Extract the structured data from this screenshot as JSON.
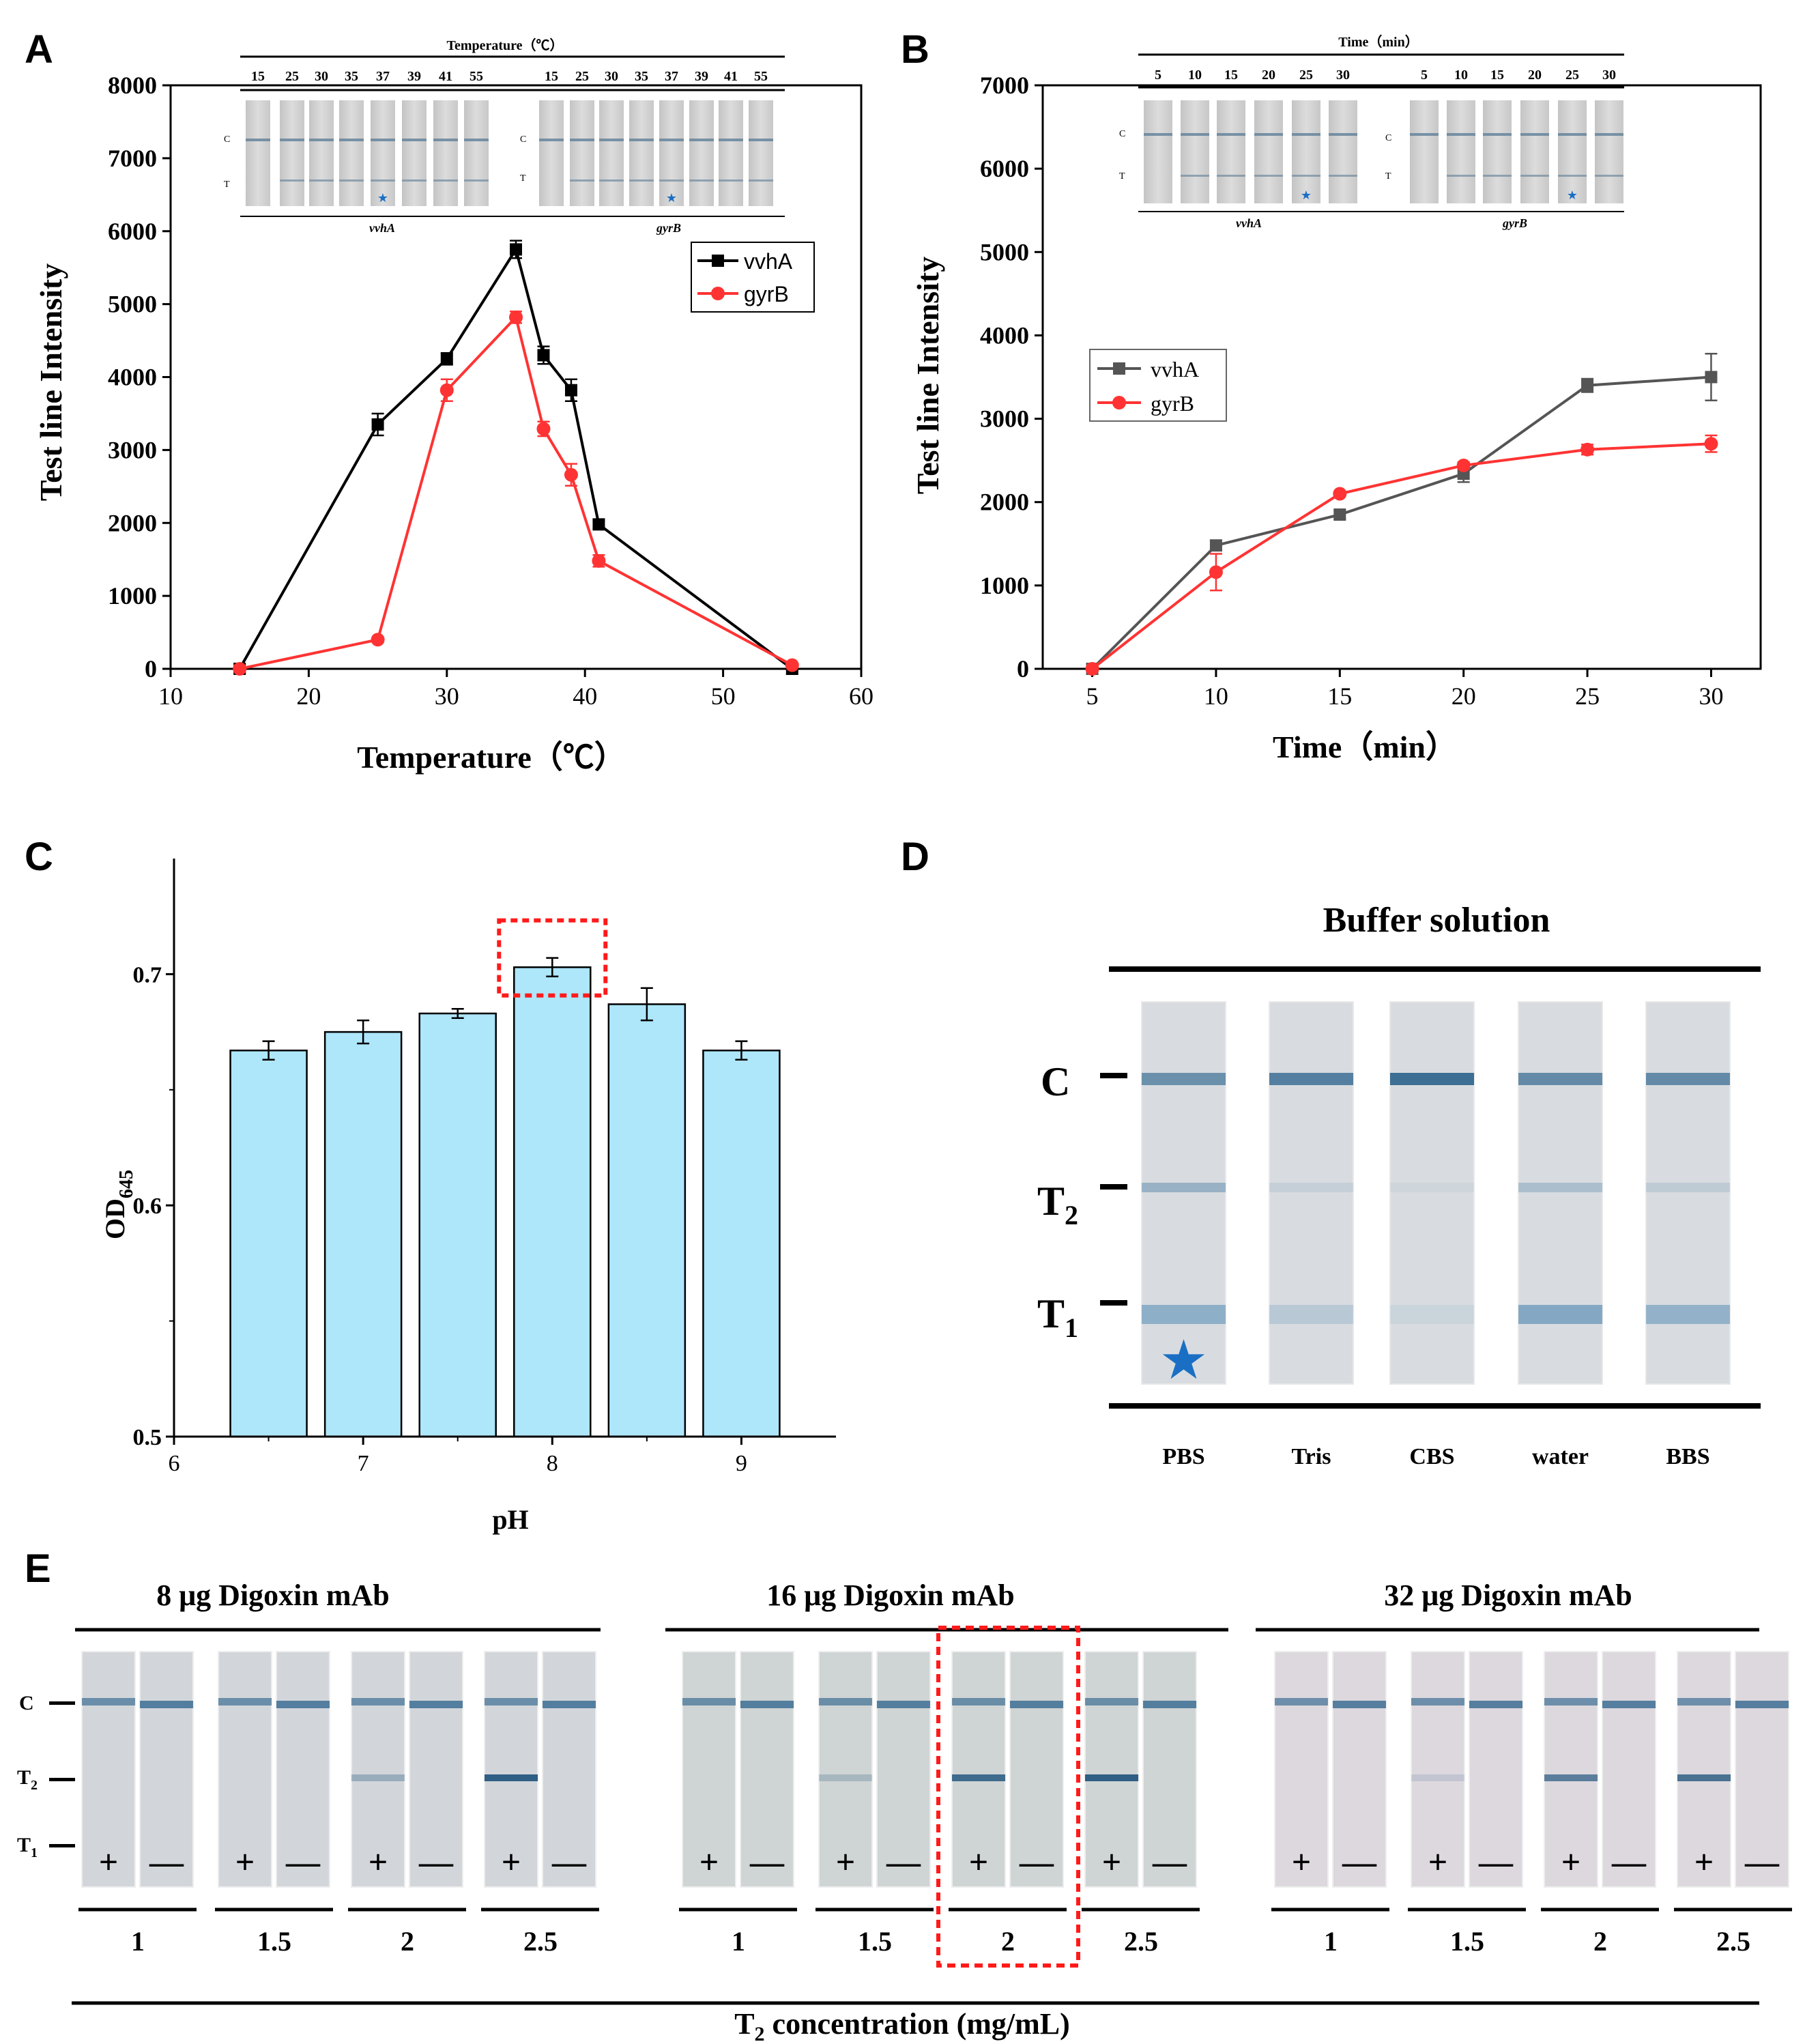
{
  "panels": {
    "A": {
      "letter": "A",
      "inset": {
        "title": "Temperature（℃）",
        "temps": [
          "15",
          "25",
          "30",
          "35",
          "37",
          "39",
          "41",
          "55"
        ],
        "gene_left": "vvhA",
        "gene_right": "gyrB",
        "c_label": "C",
        "t_label": "T"
      }
    },
    "B": {
      "letter": "B",
      "inset": {
        "title": "Time（min）",
        "times": [
          "5",
          "10",
          "15",
          "20",
          "25",
          "30"
        ],
        "gene_left": "vvhA",
        "gene_right": "gyrB",
        "c_label": "C",
        "t_label": "T"
      }
    },
    "C": {
      "letter": "C"
    },
    "D": {
      "letter": "D",
      "title": "Buffer  solution",
      "buffers": [
        "PBS",
        "Tris",
        "CBS",
        "water",
        "BBS"
      ],
      "c_label": "C",
      "t2_label": "T",
      "t2_sub": "2",
      "t1_label": "T",
      "t1_sub": "1"
    },
    "E": {
      "letter": "E",
      "groups": [
        "8 μg Digoxin mAb",
        "16 μg Digoxin mAb",
        "32 μg Digoxin mAb"
      ],
      "concentrations": [
        "1",
        "1.5",
        "2",
        "2.5"
      ],
      "plus": "+",
      "minus": "—",
      "c_label": "C",
      "t2_label": "T",
      "t2_sub": "2",
      "t1_label": "T",
      "t1_sub": "1",
      "xlabel_main": "T",
      "xlabel_sub": "2",
      "xlabel_rest": " concentration (mg/mL)"
    }
  },
  "colors": {
    "black": "#000000",
    "red": "#ff3333",
    "gray": "#555555",
    "bar": "#aee6fa",
    "strip_band": "#3d6f94",
    "star": "#1a6fc4"
  },
  "chart_data": [
    {
      "panel": "A",
      "type": "line",
      "title": "",
      "xlabel": "Temperature（℃）",
      "ylabel": "Test line Intensity",
      "xlim": [
        10,
        60
      ],
      "ylim": [
        0,
        8000
      ],
      "xticks": [
        10,
        20,
        30,
        40,
        50,
        60
      ],
      "yticks": [
        0,
        1000,
        2000,
        3000,
        4000,
        5000,
        6000,
        7000,
        8000
      ],
      "legend": "upper-right",
      "series": [
        {
          "name": "vvhA",
          "color": "#000000",
          "marker": "square",
          "x": [
            15,
            25,
            30,
            35,
            37,
            39,
            41,
            55
          ],
          "y": [
            0,
            3350,
            4250,
            5750,
            4300,
            3820,
            1980,
            0
          ],
          "err": [
            0,
            150,
            80,
            120,
            120,
            150,
            60,
            0
          ]
        },
        {
          "name": "gyrB",
          "color": "#ff3333",
          "marker": "circle",
          "x": [
            15,
            25,
            30,
            35,
            37,
            39,
            41,
            55
          ],
          "y": [
            0,
            400,
            3820,
            4820,
            3290,
            2660,
            1480,
            50
          ],
          "err": [
            0,
            0,
            150,
            80,
            100,
            150,
            80,
            0
          ]
        }
      ]
    },
    {
      "panel": "B",
      "type": "line",
      "title": "",
      "xlabel": "Time（min）",
      "ylabel": "Test line Intensity",
      "xlim": [
        3,
        32
      ],
      "ylim": [
        0,
        7000
      ],
      "xticks": [
        5,
        10,
        15,
        20,
        25,
        30
      ],
      "yticks": [
        0,
        1000,
        2000,
        3000,
        4000,
        5000,
        6000,
        7000
      ],
      "legend": "middle-left",
      "series": [
        {
          "name": "vvhA",
          "color": "#555555",
          "marker": "square",
          "x": [
            5,
            10,
            15,
            20,
            25,
            30
          ],
          "y": [
            0,
            1480,
            1850,
            2340,
            3400,
            3500
          ],
          "err": [
            0,
            60,
            50,
            100,
            80,
            280
          ]
        },
        {
          "name": "gyrB",
          "color": "#ff3333",
          "marker": "circle",
          "x": [
            5,
            10,
            15,
            20,
            25,
            30
          ],
          "y": [
            0,
            1160,
            2100,
            2440,
            2630,
            2700
          ],
          "err": [
            0,
            220,
            30,
            40,
            60,
            100
          ]
        }
      ]
    },
    {
      "panel": "C",
      "type": "bar",
      "title": "",
      "xlabel": "pH",
      "ylabel": "OD",
      "ylabel_sub": "645",
      "xlim": [
        6,
        9.5
      ],
      "ylim": [
        0.5,
        0.75
      ],
      "xticks": [
        6,
        7,
        8,
        9
      ],
      "yticks": [
        0.5,
        0.6,
        0.7
      ],
      "x": [
        6.5,
        7,
        7.5,
        8,
        8.5,
        9
      ],
      "values": [
        0.667,
        0.675,
        0.683,
        0.703,
        0.687,
        0.667
      ],
      "err": [
        0.004,
        0.005,
        0.002,
        0.004,
        0.007,
        0.004
      ],
      "highlight_x": 8
    }
  ]
}
